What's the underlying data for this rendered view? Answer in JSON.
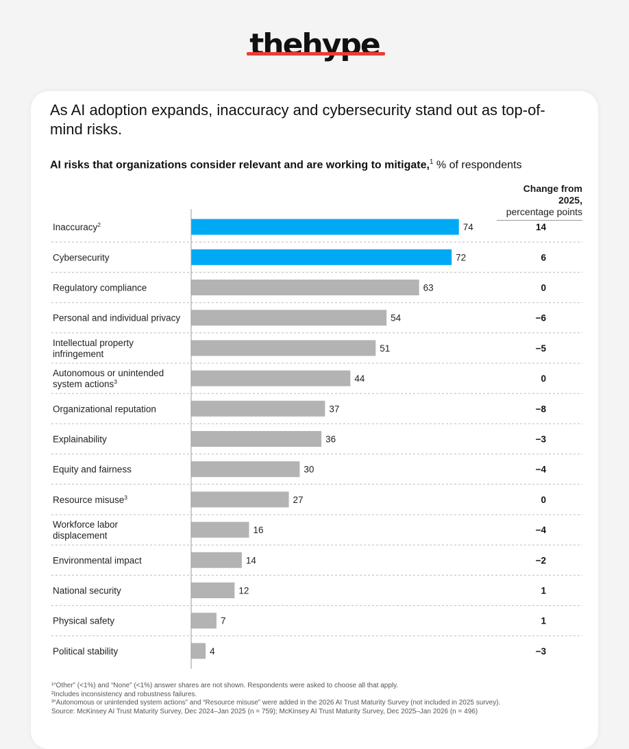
{
  "brand": {
    "logo_text": "thehype",
    "accent": "#ee3b33"
  },
  "headline": "As AI adoption expands, inaccuracy and cybersecurity stand out as top-of-mind risks.",
  "subtitle": {
    "bold": "AI risks that organizations consider relevant and are working to mitigate,",
    "sup": "1",
    "rest": " % of respondents"
  },
  "change_column": {
    "title": "Change from 2025,",
    "subtitle": "percentage points"
  },
  "chart_data": {
    "type": "bar",
    "orientation": "horizontal",
    "unit": "% of respondents",
    "categories": [
      [
        "Inaccuracy"
      ],
      [
        "Cybersecurity"
      ],
      [
        "Regulatory compliance"
      ],
      [
        "Personal and individual privacy"
      ],
      [
        "Intellectual property",
        "infringement"
      ],
      [
        "Autonomous or unintended",
        "system actions"
      ],
      [
        "Organizational reputation"
      ],
      [
        "Explainability"
      ],
      [
        "Equity and fairness"
      ],
      [
        "Resource misuse"
      ],
      [
        "Workforce labor",
        "displacement"
      ],
      [
        "Environmental impact"
      ],
      [
        "National security"
      ],
      [
        "Physical safety"
      ],
      [
        "Political stability"
      ]
    ],
    "category_footnotes": [
      "2",
      "",
      "",
      "",
      "",
      "3",
      "",
      "",
      "",
      "3",
      "",
      "",
      "",
      "",
      ""
    ],
    "values": [
      74,
      72,
      63,
      54,
      51,
      44,
      37,
      36,
      30,
      27,
      16,
      14,
      12,
      7,
      4
    ],
    "change_from_2025": [
      "14",
      "6",
      "0",
      "−6",
      "−5",
      "0",
      "−8",
      "−3",
      "−4",
      "0",
      "−4",
      "−2",
      "1",
      "1",
      "−3"
    ],
    "highlighted": [
      true,
      true,
      false,
      false,
      false,
      false,
      false,
      false,
      false,
      false,
      false,
      false,
      false,
      false,
      false
    ],
    "xlim": [
      0,
      100
    ],
    "colors": {
      "highlight": "#00a9f4",
      "default": "#b3b3b3"
    }
  },
  "footnotes": [
    "¹“Other” (<1%) and “None” (<1%) answer shares are not shown. Respondents were asked to choose all that apply.",
    "²Includes inconsistency and robustness failures.",
    "³“Autonomous or unintended system actions” and “Resource misuse” were added in the 2026 AI Trust Maturity Survey (not included in 2025 survey).",
    "Source: McKinsey AI Trust Maturity Survey, Dec 2024–Jan 2025 (n = 759); McKinsey AI Trust Maturity Survey, Dec 2025–Jan 2026 (n = 496)"
  ]
}
